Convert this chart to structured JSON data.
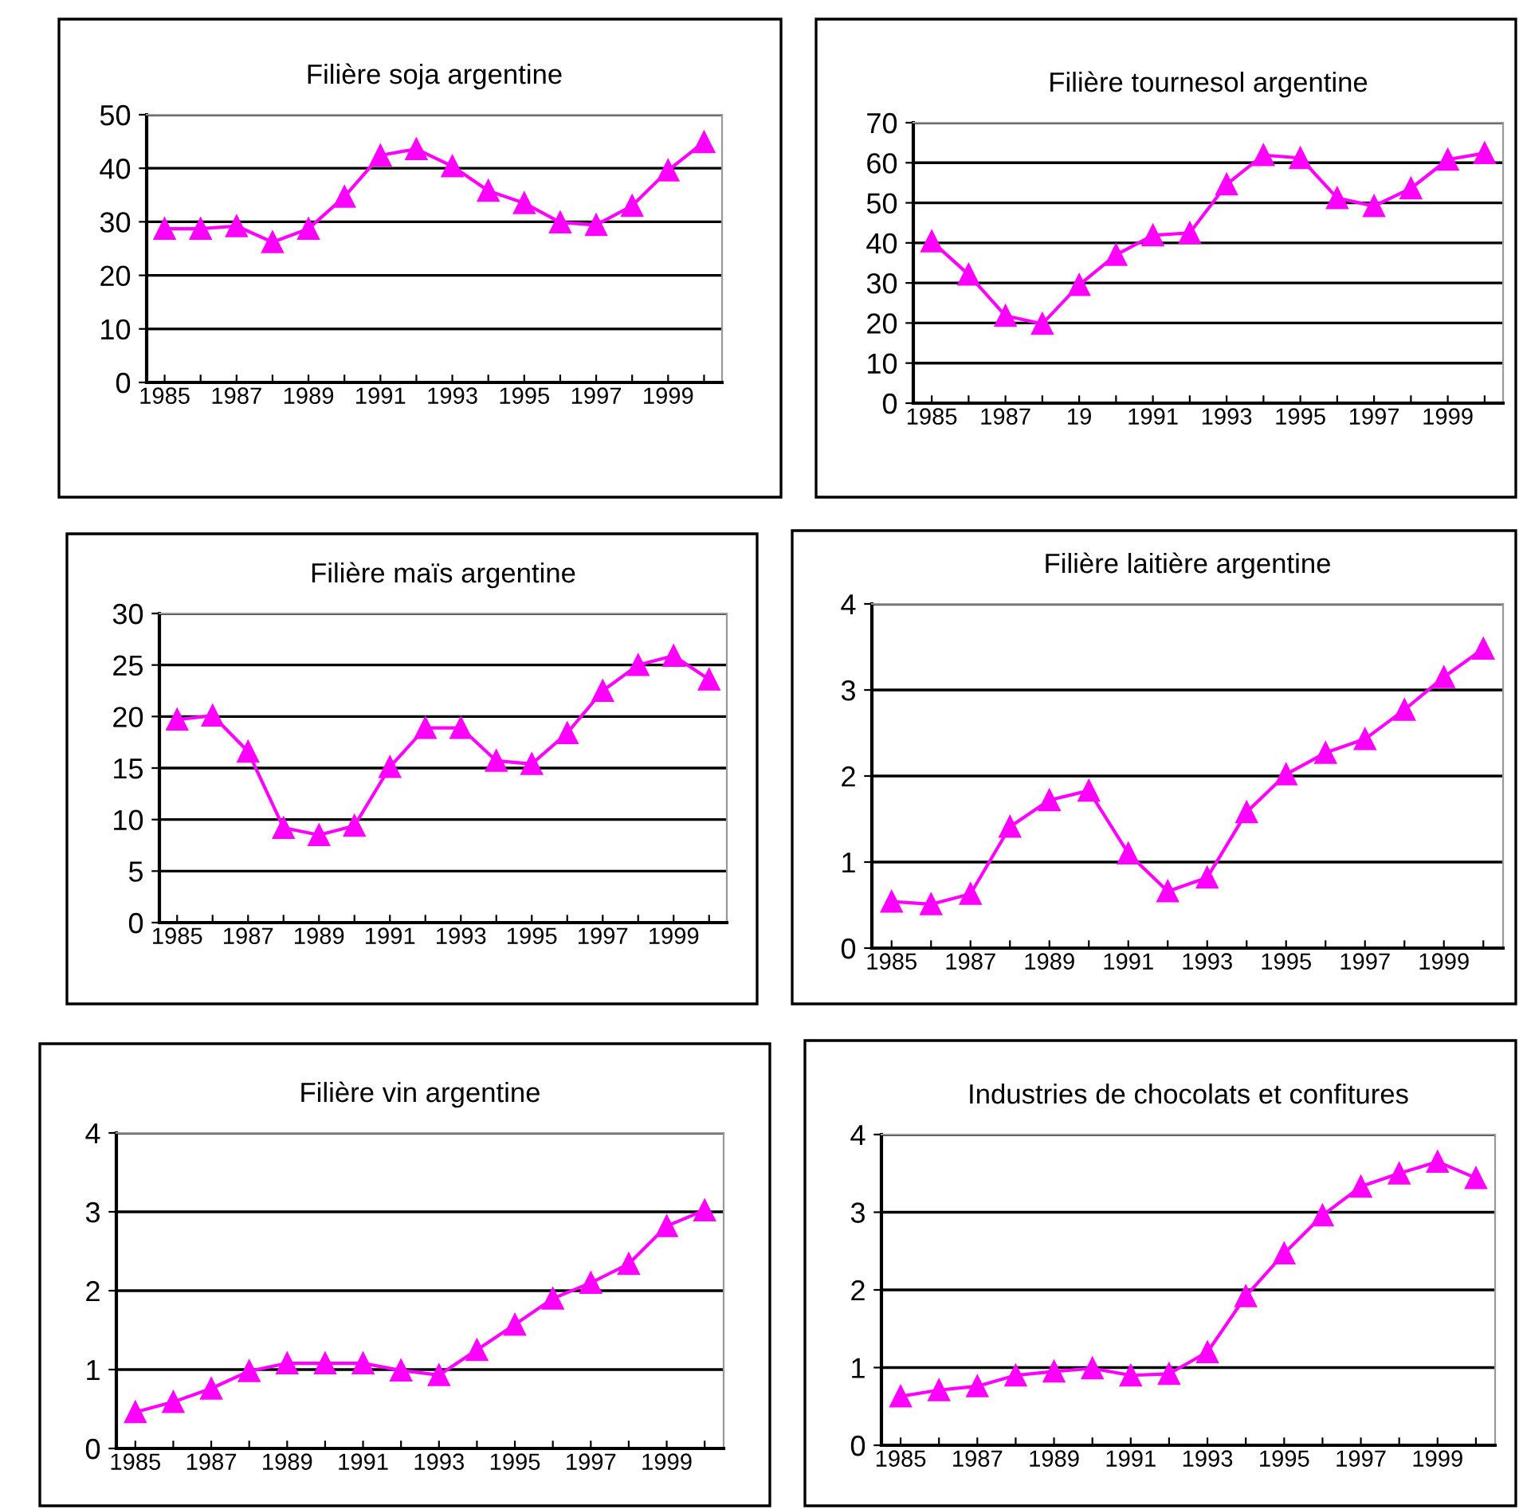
{
  "chart_data": [
    {
      "type": "line",
      "title": "Filière soja argentine",
      "categories": [
        "1985",
        null,
        "1987",
        null,
        "1989",
        null,
        "1991",
        null,
        "1993",
        null,
        "1995",
        null,
        "1997",
        null,
        "1999",
        null
      ],
      "series": [
        {
          "color": "#ff00ff",
          "values": [
            28.7,
            28.7,
            29.2,
            26.2,
            28.7,
            34.7,
            42.4,
            43.6,
            40.4,
            35.8,
            33.5,
            29.9,
            29.4,
            33,
            39.6,
            44.9
          ]
        }
      ],
      "ylim": [
        0,
        50
      ],
      "yticks": [
        0,
        10,
        20,
        30,
        40,
        50
      ],
      "grid": "y",
      "marker": "triangle",
      "line_style": "solid"
    },
    {
      "type": "line",
      "title": "Filière tournesol argentine",
      "categories": [
        "1985",
        null,
        "1987",
        null,
        "19",
        null,
        "1991",
        null,
        "1993",
        null,
        "1995",
        null,
        "1997",
        null,
        "1999",
        null
      ],
      "series": [
        {
          "color": "#ff00ff",
          "values": [
            40.4,
            32.1,
            21.8,
            19.8,
            29.5,
            37,
            41.9,
            42.5,
            54.6,
            61.9,
            61.2,
            51.2,
            49.2,
            53.6,
            60.8,
            62.4
          ]
        }
      ],
      "ylim": [
        0,
        70
      ],
      "yticks": [
        0,
        10,
        20,
        30,
        40,
        50,
        60,
        70
      ],
      "grid": "y",
      "marker": "triangle",
      "line_style": "solid"
    },
    {
      "type": "line",
      "title": "Filière maïs argentine",
      "categories": [
        "1985",
        null,
        "1987",
        null,
        "1989",
        null,
        "1991",
        null,
        "1993",
        null,
        "1995",
        null,
        "1997",
        null,
        "1999",
        null
      ],
      "series": [
        {
          "color": "#ff00ff",
          "values": [
            19.7,
            20.1,
            16.6,
            9.2,
            8.5,
            9.4,
            15.1,
            18.9,
            18.9,
            15.7,
            15.4,
            18.4,
            22.5,
            25,
            25.9,
            23.6
          ]
        }
      ],
      "ylim": [
        0,
        30
      ],
      "yticks": [
        0,
        5,
        10,
        15,
        20,
        25,
        30
      ],
      "grid": "y",
      "marker": "triangle",
      "line_style": "solid"
    },
    {
      "type": "line",
      "title": "Filière laitière argentine",
      "categories": [
        "1985",
        null,
        "1987",
        null,
        "1989",
        null,
        "1991",
        null,
        "1993",
        null,
        "1995",
        null,
        "1997",
        null,
        "1999",
        null
      ],
      "series": [
        {
          "color": "#ff00ff",
          "values": [
            0.54,
            0.51,
            0.63,
            1.41,
            1.72,
            1.83,
            1.1,
            0.66,
            0.82,
            1.58,
            2.02,
            2.27,
            2.43,
            2.77,
            3.15,
            3.48
          ]
        }
      ],
      "ylim": [
        0,
        4
      ],
      "yticks": [
        0,
        1,
        2,
        3,
        4
      ],
      "grid": "y",
      "marker": "triangle",
      "line_style": "solid"
    },
    {
      "type": "line",
      "title": "Filière vin argentine",
      "categories": [
        "1985",
        null,
        "1987",
        null,
        "1989",
        null,
        "1991",
        null,
        "1993",
        null,
        "1995",
        null,
        "1997",
        null,
        "1999",
        null
      ],
      "series": [
        {
          "color": "#ff00ff",
          "values": [
            0.46,
            0.59,
            0.76,
            0.98,
            1.08,
            1.08,
            1.08,
            0.99,
            0.93,
            1.25,
            1.57,
            1.9,
            2.1,
            2.34,
            2.82,
            3.02
          ]
        }
      ],
      "ylim": [
        0,
        4
      ],
      "yticks": [
        0,
        1,
        2,
        3,
        4
      ],
      "grid": "y",
      "marker": "triangle",
      "line_style": "solid"
    },
    {
      "type": "line",
      "title": "Industries de chocolats et confitures",
      "categories": [
        "1985",
        null,
        "1987",
        null,
        "1989",
        null,
        "1991",
        null,
        "1993",
        null,
        "1995",
        null,
        "1997",
        null,
        "1999",
        null
      ],
      "series": [
        {
          "color": "#ff00ff",
          "values": [
            0.63,
            0.71,
            0.76,
            0.9,
            0.95,
            0.99,
            0.9,
            0.92,
            1.2,
            1.92,
            2.47,
            2.96,
            3.33,
            3.5,
            3.65,
            3.44
          ]
        }
      ],
      "ylim": [
        0,
        4
      ],
      "yticks": [
        0,
        1,
        2,
        3,
        4
      ],
      "grid": "y",
      "marker": "triangle",
      "line_style": "solid"
    }
  ]
}
